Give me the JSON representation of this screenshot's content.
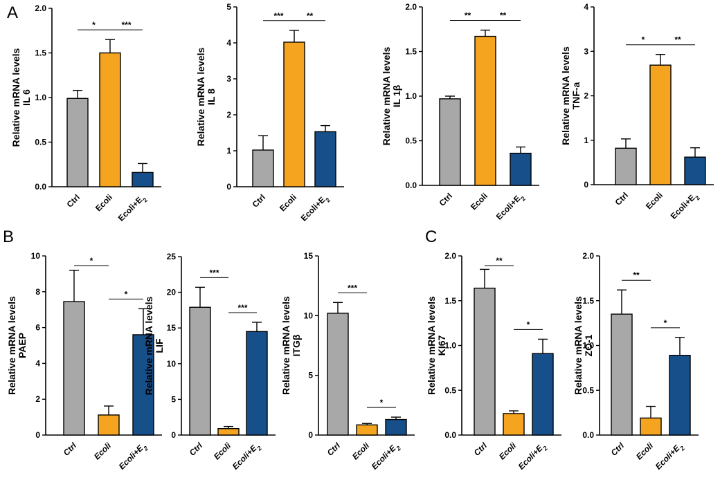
{
  "panel_labels": [
    "A",
    "B",
    "C"
  ],
  "colors": {
    "ctrl": "#a8a8a8",
    "ecoli": "#f5a41f",
    "ecoli_e2": "#174f8a",
    "axis": "#000000"
  },
  "chart_data": [
    {
      "type": "bar",
      "panel": "A",
      "ylabel": [
        "Relative mRNA levels",
        "IL 6"
      ],
      "categories": [
        "Ctrl",
        "Ecoli",
        "Ecoli+E2"
      ],
      "values": [
        0.99,
        1.5,
        0.16
      ],
      "errors": [
        0.09,
        0.15,
        0.1
      ],
      "ylim": [
        0,
        2.0
      ],
      "yticks": [
        "0.0",
        "0.5",
        "1.0",
        "1.5",
        "2.0"
      ],
      "italic": false,
      "significance": [
        {
          "from": 0,
          "to": 1,
          "label": "*"
        },
        {
          "from": 1,
          "to": 2,
          "label": "***"
        }
      ]
    },
    {
      "type": "bar",
      "panel": "A",
      "ylabel": [
        "Relative mRNA levels",
        "IL 8"
      ],
      "categories": [
        "Ctrl",
        "Ecoli",
        "Ecoli+E2"
      ],
      "values": [
        1.02,
        4.02,
        1.53
      ],
      "errors": [
        0.4,
        0.33,
        0.17
      ],
      "ylim": [
        0,
        5
      ],
      "yticks": [
        "0",
        "1",
        "2",
        "3",
        "4",
        "5"
      ],
      "italic": false,
      "significance": [
        {
          "from": 0,
          "to": 1,
          "label": "***"
        },
        {
          "from": 1,
          "to": 2,
          "label": "**"
        }
      ]
    },
    {
      "type": "bar",
      "panel": "A",
      "ylabel": [
        "Relative mRNA levels",
        "IL 1β"
      ],
      "categories": [
        "Ctrl",
        "Ecoli",
        "Ecoli+E2"
      ],
      "values": [
        0.97,
        1.67,
        0.36
      ],
      "errors": [
        0.03,
        0.07,
        0.07
      ],
      "ylim": [
        0,
        2.0
      ],
      "yticks": [
        "0.0",
        "0.5",
        "1.0",
        "1.5",
        "2.0"
      ],
      "italic": false,
      "significance": [
        {
          "from": 0,
          "to": 1,
          "label": "**"
        },
        {
          "from": 1,
          "to": 2,
          "label": "**"
        }
      ]
    },
    {
      "type": "bar",
      "panel": "A",
      "ylabel": [
        "Relative mRNA levels",
        "TNF-a"
      ],
      "categories": [
        "Ctrl",
        "Ecoli",
        "Ecoli+E2"
      ],
      "values": [
        0.82,
        2.69,
        0.62
      ],
      "errors": [
        0.21,
        0.24,
        0.21
      ],
      "ylim": [
        0,
        4
      ],
      "yticks": [
        "0",
        "1",
        "2",
        "3",
        "4"
      ],
      "italic": false,
      "significance": [
        {
          "from": 0,
          "to": 1,
          "label": "*"
        },
        {
          "from": 1,
          "to": 2,
          "label": "**"
        }
      ]
    },
    {
      "type": "bar",
      "panel": "B",
      "ylabel": [
        "Relative mRNA levels",
        "PAEP"
      ],
      "categories": [
        "Ctrl",
        "Ecoli",
        "Ecoli+E2"
      ],
      "values": [
        7.45,
        1.12,
        5.6
      ],
      "errors": [
        1.75,
        0.5,
        1.45
      ],
      "ylim": [
        0,
        10
      ],
      "yticks": [
        "0",
        "2",
        "4",
        "6",
        "8",
        "10"
      ],
      "italic": true,
      "significance": [
        {
          "from": 0,
          "to": 1,
          "label": "*"
        },
        {
          "from": 1,
          "to": 2,
          "label": "*"
        }
      ]
    },
    {
      "type": "bar",
      "panel": "B",
      "ylabel": [
        "Relative mRNA levels",
        "LIF"
      ],
      "categories": [
        "Ctrl",
        "Ecoli",
        "Ecoli+E2"
      ],
      "values": [
        17.9,
        0.9,
        14.5
      ],
      "errors": [
        2.8,
        0.3,
        1.3
      ],
      "ylim": [
        0,
        25
      ],
      "yticks": [
        "0",
        "5",
        "10",
        "15",
        "20",
        "25"
      ],
      "italic": true,
      "significance": [
        {
          "from": 0,
          "to": 1,
          "label": "***"
        },
        {
          "from": 1,
          "to": 2,
          "label": "***"
        }
      ]
    },
    {
      "type": "bar",
      "panel": "B",
      "ylabel": [
        "Relative mRNA levels",
        "ITGβ"
      ],
      "categories": [
        "Ctrl",
        "Ecoli",
        "Ecoli+E2"
      ],
      "values": [
        10.2,
        0.85,
        1.3
      ],
      "errors": [
        0.9,
        0.12,
        0.2
      ],
      "ylim": [
        0,
        15
      ],
      "yticks": [
        "0",
        "5",
        "10",
        "15"
      ],
      "italic": true,
      "significance": [
        {
          "from": 0,
          "to": 1,
          "label": "***"
        },
        {
          "from": 1,
          "to": 2,
          "label": "*"
        }
      ]
    },
    {
      "type": "bar",
      "panel": "C",
      "ylabel": [
        "Relative mRNA levels",
        "KI67"
      ],
      "categories": [
        "Ctrl",
        "Ecoli",
        "Ecoli+E2"
      ],
      "values": [
        1.64,
        0.24,
        0.91
      ],
      "errors": [
        0.21,
        0.03,
        0.16
      ],
      "ylim": [
        0,
        2.0
      ],
      "yticks": [
        "0.0",
        "0.5",
        "1.0",
        "1.5",
        "2.0"
      ],
      "italic": true,
      "significance": [
        {
          "from": 0,
          "to": 1,
          "label": "**"
        },
        {
          "from": 1,
          "to": 2,
          "label": "*"
        }
      ]
    },
    {
      "type": "bar",
      "panel": "C",
      "ylabel": [
        "Relative mRNA levels",
        "ZO-1"
      ],
      "categories": [
        "Ctrl",
        "Ecoli",
        "Ecoli+E2"
      ],
      "values": [
        1.35,
        0.19,
        0.89
      ],
      "errors": [
        0.27,
        0.13,
        0.2
      ],
      "ylim": [
        0,
        2.0
      ],
      "yticks": [
        "0.0",
        "0.5",
        "1.0",
        "1.5",
        "2.0"
      ],
      "italic": true,
      "significance": [
        {
          "from": 0,
          "to": 1,
          "label": "**"
        },
        {
          "from": 1,
          "to": 2,
          "label": "*"
        }
      ]
    }
  ]
}
